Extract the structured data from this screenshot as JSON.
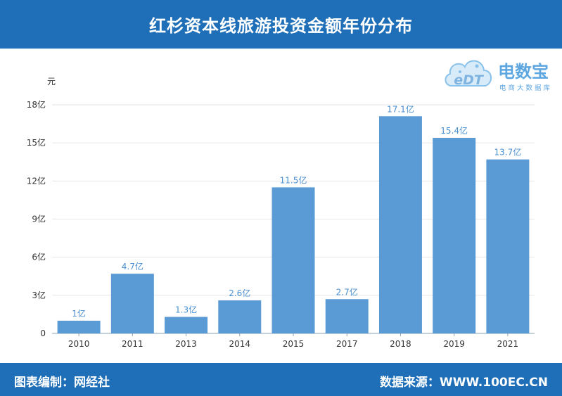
{
  "header": {
    "title": "红杉资本线旅游投资金额年份分布"
  },
  "footer": {
    "left_text": "图表编制：网经社",
    "right_text": "数据来源：WWW.100EC.CN"
  },
  "logo": {
    "brand": "电数宝",
    "sub": "电商大数据库",
    "mark": "eDT"
  },
  "chart_data": {
    "type": "bar",
    "title": "红杉资本线旅游投资金额年份分布",
    "ylabel": "元",
    "xlabel": "",
    "categories": [
      "2010",
      "2011",
      "2013",
      "2014",
      "2015",
      "2017",
      "2018",
      "2019",
      "2021"
    ],
    "values": [
      1,
      4.7,
      1.3,
      2.6,
      11.5,
      2.7,
      17.1,
      15.4,
      13.7
    ],
    "data_labels": [
      "1亿",
      "4.7亿",
      "1.3亿",
      "2.6亿",
      "11.5亿",
      "2.7亿",
      "17.1亿",
      "15.4亿",
      "13.7亿"
    ],
    "ylim": [
      0,
      18
    ],
    "yticks": [
      0,
      3,
      6,
      9,
      12,
      15,
      18
    ],
    "ytick_labels": [
      "0",
      "3亿",
      "6亿",
      "9亿",
      "12亿",
      "15亿",
      "18亿"
    ],
    "bar_color": "#5b9bd5",
    "label_color": "#4a8fd0",
    "grid": true
  }
}
